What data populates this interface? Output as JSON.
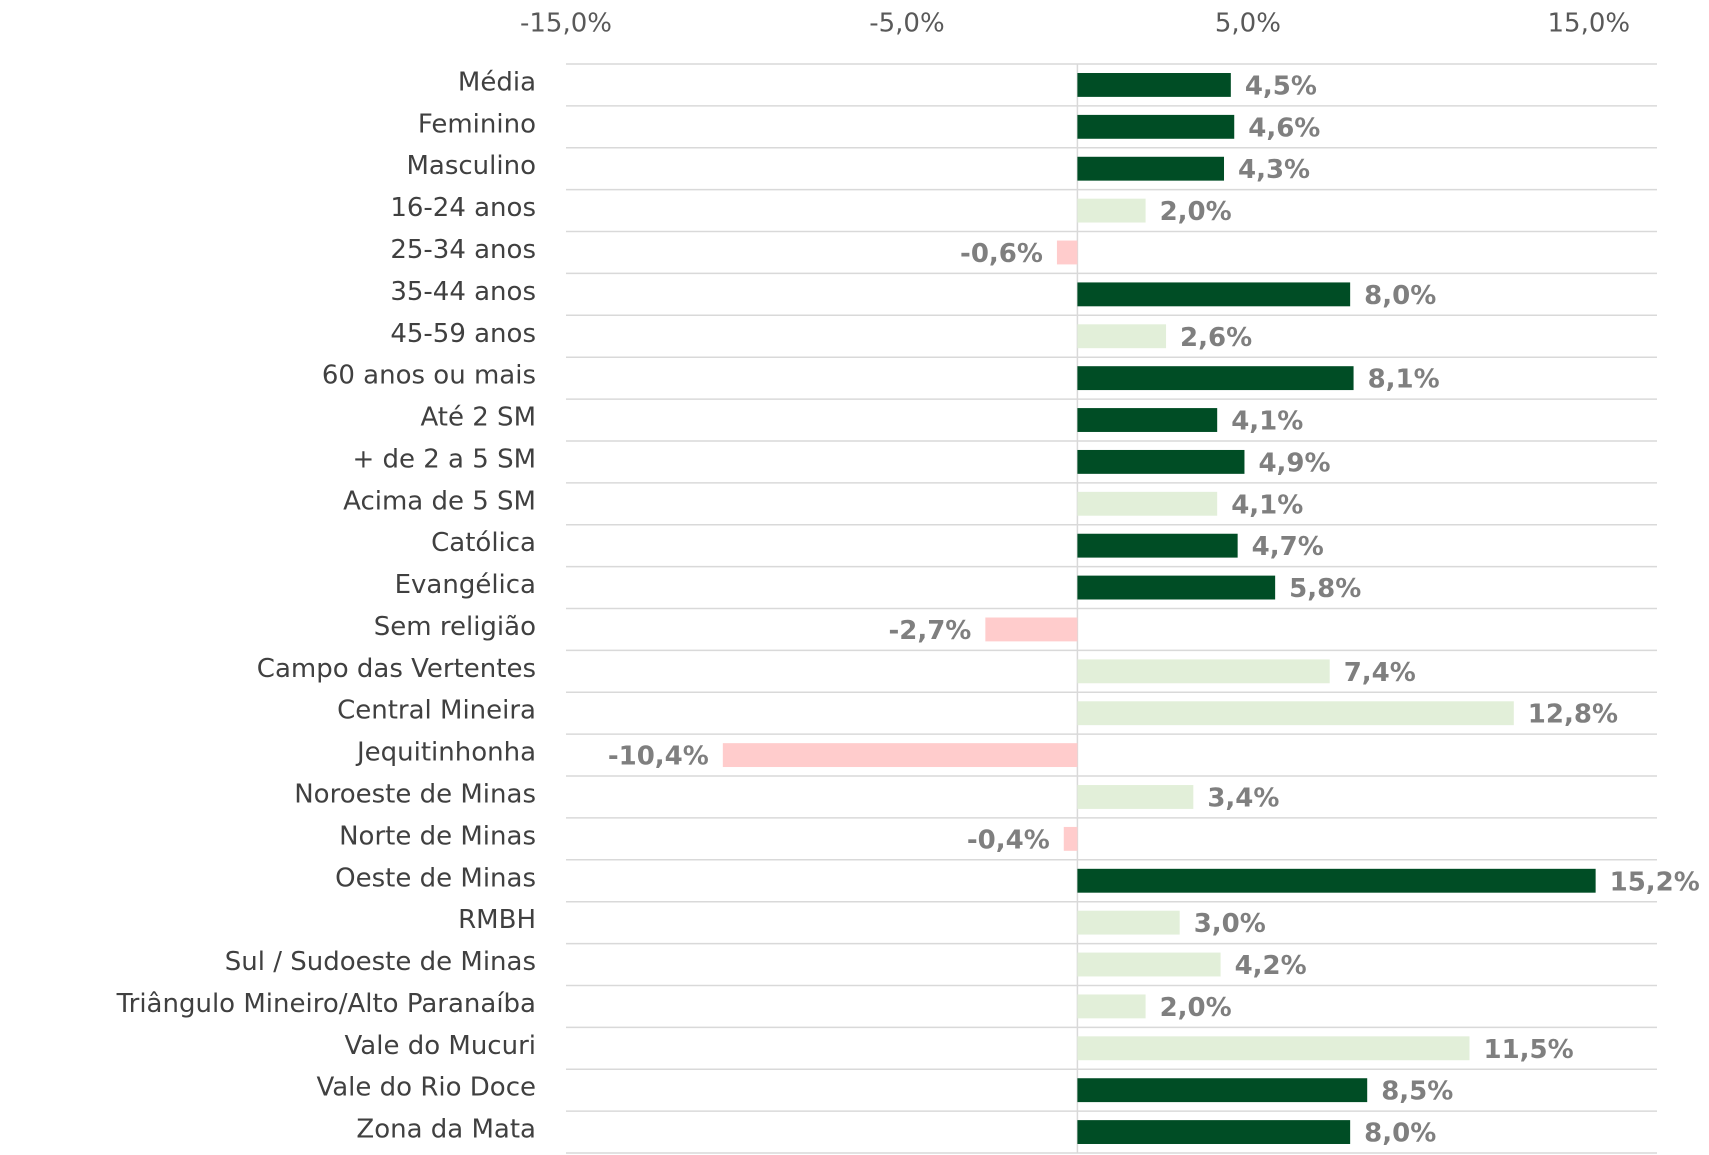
{
  "chart_data": {
    "type": "hbar",
    "categories": [
      "Média",
      "Feminino",
      "Masculino",
      "16-24 anos",
      "25-34 anos",
      "35-44 anos",
      "45-59 anos",
      "60 anos ou mais",
      "Até 2 SM",
      "+ de 2 a 5 SM",
      "Acima de 5 SM",
      "Católica",
      "Evangélica",
      "Sem religião",
      "Campo das Vertentes",
      "Central Mineira",
      "Jequitinhonha",
      "Noroeste de Minas",
      "Norte de Minas",
      "Oeste de Minas",
      "RMBH",
      "Sul / Sudoeste de Minas",
      "Triângulo Mineiro/Alto Paranaíba",
      "Vale do Mucuri",
      "Vale do Rio Doce",
      "Zona da Mata"
    ],
    "values": [
      4.5,
      4.6,
      4.3,
      2.0,
      -0.6,
      8.0,
      2.6,
      8.1,
      4.1,
      4.9,
      4.1,
      4.7,
      5.8,
      -2.7,
      7.4,
      12.8,
      -10.4,
      3.4,
      -0.4,
      15.2,
      3.0,
      4.2,
      2.0,
      11.5,
      8.5,
      8.0
    ],
    "value_labels": [
      "4,5%",
      "4,6%",
      "4,3%",
      "2,0%",
      "-0,6%",
      "8,0%",
      "2,6%",
      "8,1%",
      "4,1%",
      "4,9%",
      "4,1%",
      "4,7%",
      "5,8%",
      "-2,7%",
      "7,4%",
      "12,8%",
      "-10,4%",
      "3,4%",
      "-0,4%",
      "15,2%",
      "3,0%",
      "4,2%",
      "2,0%",
      "11,5%",
      "8,5%",
      "8,0%"
    ],
    "colors": [
      "#004d25",
      "#004d25",
      "#004d25",
      "#e2efd9",
      "#ffcccc",
      "#004d25",
      "#e2efd9",
      "#004d25",
      "#004d25",
      "#004d25",
      "#e2efd9",
      "#004d25",
      "#004d25",
      "#ffcccc",
      "#e2efd9",
      "#e2efd9",
      "#ffcccc",
      "#e2efd9",
      "#ffcccc",
      "#004d25",
      "#e2efd9",
      "#e2efd9",
      "#e2efd9",
      "#e2efd9",
      "#004d25",
      "#004d25"
    ],
    "xlim": [
      -15,
      17
    ],
    "xticks": [
      {
        "value": -15,
        "label": "-15,0%"
      },
      {
        "value": -5,
        "label": "-5,0%"
      },
      {
        "value": 5,
        "label": "5,0%"
      },
      {
        "value": 15,
        "label": "15,0%"
      }
    ],
    "grid": true
  }
}
